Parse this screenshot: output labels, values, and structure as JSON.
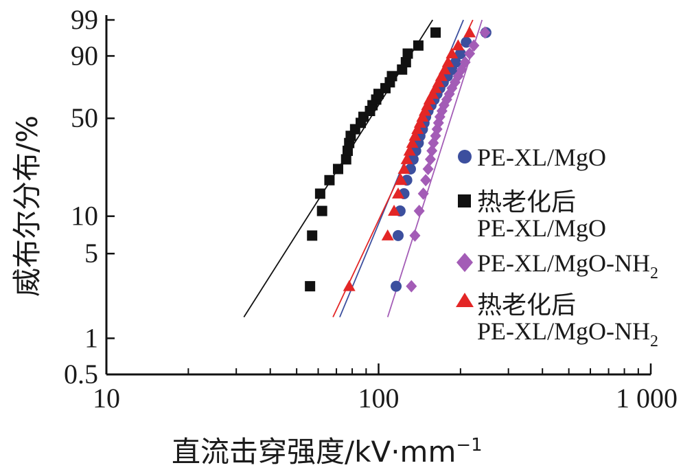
{
  "chart_data": {
    "type": "scatter",
    "title": "",
    "xlabel": "直流击穿强度/kV·mm",
    "xlabel_sup": "−1",
    "ylabel": "威布尔分布/%",
    "x_scale": "log",
    "y_scale": "weibull",
    "xlim": [
      10,
      1000
    ],
    "ylim": [
      0.5,
      99
    ],
    "x_ticks": [
      {
        "value": 10,
        "label": "10"
      },
      {
        "value": 100,
        "label": "100"
      },
      {
        "value": 1000,
        "label": "1 000"
      }
    ],
    "y_ticks": [
      {
        "value": 0.5,
        "label": "0.5"
      },
      {
        "value": 1,
        "label": "1"
      },
      {
        "value": 5,
        "label": "5"
      },
      {
        "value": 10,
        "label": "10"
      },
      {
        "value": 50,
        "label": "50"
      },
      {
        "value": 90,
        "label": "90"
      },
      {
        "value": 99,
        "label": "99"
      }
    ],
    "grid": false,
    "legend_position": "right",
    "series": [
      {
        "name": "PE-XL/MgO",
        "marker": "circle",
        "color": "#3c4f9e",
        "fit_line": [
          [
            72,
            1.5
          ],
          [
            205,
            99
          ]
        ],
        "points": [
          [
            116,
            2.7
          ],
          [
            118,
            7.0
          ],
          [
            120,
            11.0
          ],
          [
            124,
            15.0
          ],
          [
            127,
            19.0
          ],
          [
            131,
            23.0
          ],
          [
            134,
            27.0
          ],
          [
            137,
            31.0
          ],
          [
            140,
            35.0
          ],
          [
            142,
            39.0
          ],
          [
            145,
            43.0
          ],
          [
            147,
            47.0
          ],
          [
            149,
            51.0
          ],
          [
            152,
            55.0
          ],
          [
            156,
            59.0
          ],
          [
            160,
            63.0
          ],
          [
            164,
            67.0
          ],
          [
            168,
            71.0
          ],
          [
            173,
            75.0
          ],
          [
            179,
            79.0
          ],
          [
            186,
            83.0
          ],
          [
            192,
            87.0
          ],
          [
            200,
            91.0
          ],
          [
            210,
            95.0
          ],
          [
            248,
            97.3
          ]
        ]
      },
      {
        "name": "热老化后 PE-XL/MgO",
        "marker": "square",
        "color": "#111111",
        "fit_line": [
          [
            32,
            1.5
          ],
          [
            158,
            99
          ]
        ],
        "points": [
          [
            56,
            2.7
          ],
          [
            57,
            7.0
          ],
          [
            62,
            11.0
          ],
          [
            61,
            15.0
          ],
          [
            66,
            19.0
          ],
          [
            71,
            23.0
          ],
          [
            76,
            27.0
          ],
          [
            77,
            31.0
          ],
          [
            78,
            35.0
          ],
          [
            79,
            39.0
          ],
          [
            82,
            43.0
          ],
          [
            86,
            47.0
          ],
          [
            88,
            51.0
          ],
          [
            93,
            55.0
          ],
          [
            95,
            59.0
          ],
          [
            98,
            63.0
          ],
          [
            100,
            67.0
          ],
          [
            106,
            71.0
          ],
          [
            110,
            75.0
          ],
          [
            112,
            79.0
          ],
          [
            122,
            83.0
          ],
          [
            126,
            87.0
          ],
          [
            128,
            91.0
          ],
          [
            140,
            94.0
          ],
          [
            162,
            97.3
          ]
        ]
      },
      {
        "name": "PE-XL/MgO-NH",
        "name_sub": "2",
        "marker": "diamond",
        "color": "#a35cb6",
        "fit_line": [
          [
            108,
            1.5
          ],
          [
            240,
            99
          ]
        ],
        "points": [
          [
            132,
            2.7
          ],
          [
            136,
            7.0
          ],
          [
            141,
            11.0
          ],
          [
            146,
            15.0
          ],
          [
            149,
            19.0
          ],
          [
            152,
            23.0
          ],
          [
            155,
            27.0
          ],
          [
            157,
            31.0
          ],
          [
            159,
            35.0
          ],
          [
            162,
            39.0
          ],
          [
            164,
            43.0
          ],
          [
            166,
            47.0
          ],
          [
            168,
            51.0
          ],
          [
            171,
            55.0
          ],
          [
            174,
            59.0
          ],
          [
            178,
            63.0
          ],
          [
            182,
            67.0
          ],
          [
            186,
            71.0
          ],
          [
            191,
            75.0
          ],
          [
            196,
            79.0
          ],
          [
            202,
            83.0
          ],
          [
            208,
            87.0
          ],
          [
            216,
            91.0
          ],
          [
            224,
            94.0
          ],
          [
            246,
            97.3
          ]
        ]
      },
      {
        "name": "热老化后 PE-XL/MgO-NH",
        "name_sub": "2",
        "marker": "triangle",
        "color": "#e32626",
        "fit_line": [
          [
            68,
            1.5
          ],
          [
            222,
            99
          ]
        ],
        "points": [
          [
            78,
            2.7
          ],
          [
            108,
            7.0
          ],
          [
            114,
            11.0
          ],
          [
            118,
            15.0
          ],
          [
            121,
            19.0
          ],
          [
            124,
            23.0
          ],
          [
            127,
            27.0
          ],
          [
            130,
            31.0
          ],
          [
            133,
            35.0
          ],
          [
            136,
            39.0
          ],
          [
            139,
            43.0
          ],
          [
            142,
            47.0
          ],
          [
            145,
            51.0
          ],
          [
            148,
            55.0
          ],
          [
            151,
            59.0
          ],
          [
            154,
            63.0
          ],
          [
            158,
            67.0
          ],
          [
            162,
            71.0
          ],
          [
            166,
            75.0
          ],
          [
            170,
            79.0
          ],
          [
            175,
            83.0
          ],
          [
            180,
            87.0
          ],
          [
            186,
            91.0
          ],
          [
            196,
            94.0
          ],
          [
            216,
            97.3
          ]
        ]
      }
    ]
  }
}
